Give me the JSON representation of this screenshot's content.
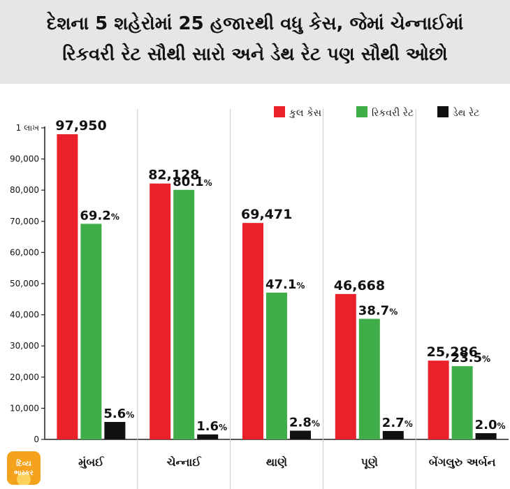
{
  "header": {
    "line1": "દેશના 5 શહેરોમાં 25 હજારથી વધુ કેસ, જેમાં ચેન્નાઈમાં",
    "line2": "રિકવરી રેટ સૌથી સારો અને ડેથ રેટ પણ સૌથી ઓછો"
  },
  "logo": {
    "line1": "દિવ્ય",
    "line2": "ભાસ્કર"
  },
  "chart_data": {
    "type": "bar",
    "categories": [
      "મુંબઈ",
      "ચેન્નાઈ",
      "થાણે",
      "પૂણે",
      "બેંગલુરુ અર્બન"
    ],
    "series": [
      {
        "name": "કુલ કેસ",
        "color": "#e8212a",
        "values": [
          97950,
          82128,
          69471,
          46668,
          25286
        ],
        "labels": [
          "97,950",
          "82,128",
          "69,471",
          "46,668",
          "25,286"
        ]
      },
      {
        "name": "રિકવરી રેટ",
        "color": "#3fae49",
        "values": [
          69.2,
          80.1,
          47.1,
          38.7,
          23.5
        ],
        "labels": [
          "69.2",
          "80.1",
          "47.1",
          "38.7",
          "23.5"
        ]
      },
      {
        "name": "ડેથ રેટ",
        "color": "#111111",
        "values": [
          5.6,
          1.6,
          2.8,
          2.7,
          2.0
        ],
        "labels": [
          "5.6",
          "1.6",
          "2.8",
          "2.7",
          "2.0"
        ]
      }
    ],
    "rate_unit": "%",
    "yticks": [
      "0",
      "10,000",
      "20,000",
      "30,000",
      "40,000",
      "50,000",
      "60,000",
      "70,000",
      "80,000",
      "90,000",
      "1 લાખ"
    ],
    "ylim": [
      0,
      100000
    ],
    "legend_position": "top-right",
    "grid": "vertical separators between cities"
  }
}
